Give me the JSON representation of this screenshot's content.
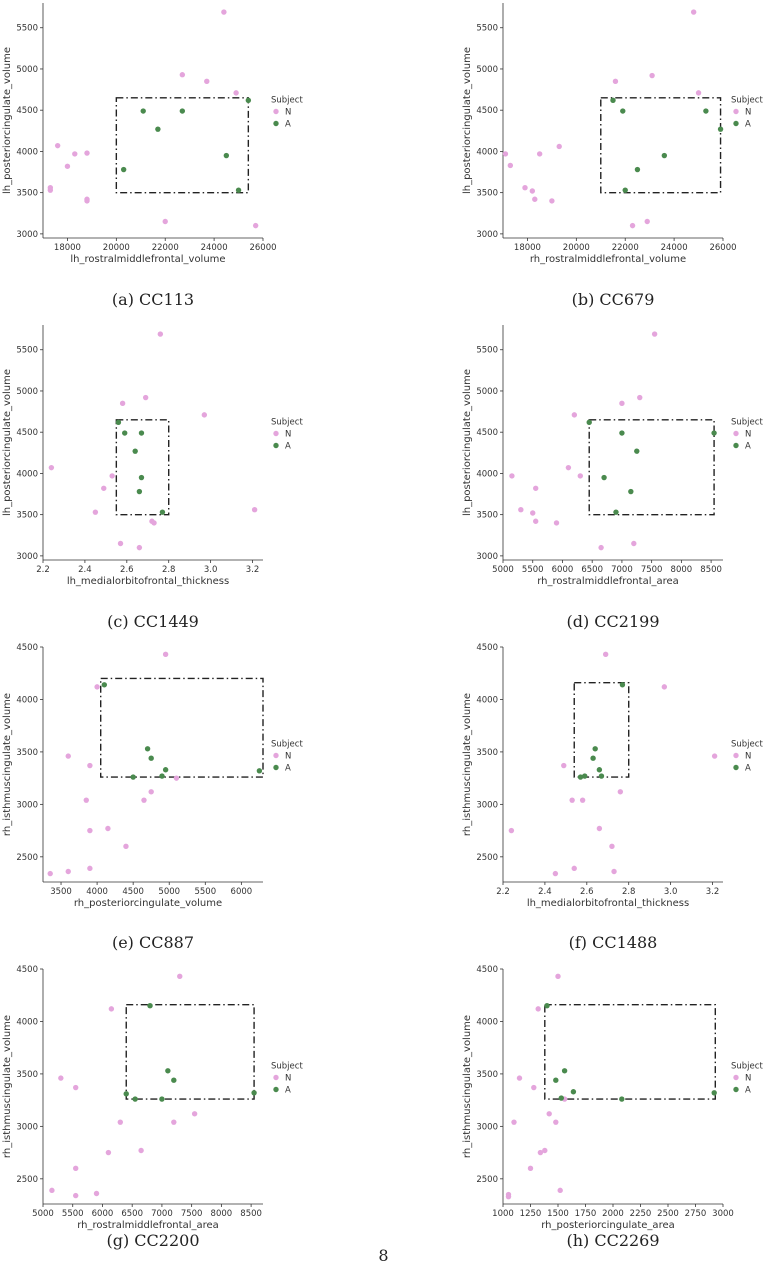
{
  "page_number": "8",
  "legend": {
    "title": "Subject",
    "labels": [
      "N",
      "A"
    ]
  },
  "colors": {
    "N": "#e4a5dc",
    "A": "#4a8a4e"
  },
  "captions": [
    "(a) CC113",
    "(b) CC679",
    "(c) CC1449",
    "(d) CC2199",
    "(e) CC887",
    "(f) CC1488",
    "(g) CC2200",
    "(h) CC2269"
  ],
  "chart_data": [
    {
      "type": "scatter",
      "caption": "(a) CC113",
      "xlabel": "lh_rostralmiddlefrontal_volume",
      "ylabel": "lh_posteriorcingulate_volume",
      "xlim": [
        17000,
        26000
      ],
      "ylim": [
        2950,
        5800
      ],
      "xticks": [
        18000,
        20000,
        22000,
        24000,
        26000
      ],
      "yticks": [
        3000,
        3500,
        4000,
        4500,
        5000,
        5500
      ],
      "box": {
        "x": [
          20000,
          25400
        ],
        "y": [
          3500,
          4650
        ]
      },
      "series": [
        {
          "name": "N",
          "points": [
            [
              17300,
              3560
            ],
            [
              17300,
              3530
            ],
            [
              17600,
              4070
            ],
            [
              18000,
              3820
            ],
            [
              18300,
              3970
            ],
            [
              18800,
              3980
            ],
            [
              18800,
              3420
            ],
            [
              18800,
              3400
            ],
            [
              22000,
              3150
            ],
            [
              22700,
              4930
            ],
            [
              23700,
              4850
            ],
            [
              24400,
              5690
            ],
            [
              24900,
              4710
            ],
            [
              25700,
              3100
            ]
          ]
        },
        {
          "name": "A",
          "points": [
            [
              20300,
              3780
            ],
            [
              21100,
              4490
            ],
            [
              21700,
              4270
            ],
            [
              22700,
              4490
            ],
            [
              24500,
              3950
            ],
            [
              25000,
              3530
            ],
            [
              25400,
              4620
            ]
          ]
        }
      ]
    },
    {
      "type": "scatter",
      "caption": "(b) CC679",
      "xlabel": "rh_rostralmiddlefrontal_volume",
      "ylabel": "lh_posteriorcingulate_volume",
      "xlim": [
        17000,
        26000
      ],
      "ylim": [
        2950,
        5800
      ],
      "xticks": [
        18000,
        20000,
        22000,
        24000,
        26000
      ],
      "yticks": [
        3000,
        3500,
        4000,
        4500,
        5000,
        5500
      ],
      "box": {
        "x": [
          21000,
          25900
        ],
        "y": [
          3500,
          4650
        ]
      },
      "series": [
        {
          "name": "N",
          "points": [
            [
              17100,
              3970
            ],
            [
              17300,
              3830
            ],
            [
              17900,
              3560
            ],
            [
              18200,
              3520
            ],
            [
              18300,
              3420
            ],
            [
              18500,
              3970
            ],
            [
              19000,
              3400
            ],
            [
              19300,
              4060
            ],
            [
              21600,
              4850
            ],
            [
              22300,
              3100
            ],
            [
              22900,
              3150
            ],
            [
              23100,
              4920
            ],
            [
              24800,
              5690
            ],
            [
              25000,
              4710
            ]
          ]
        },
        {
          "name": "A",
          "points": [
            [
              21500,
              4620
            ],
            [
              21900,
              4490
            ],
            [
              22000,
              3530
            ],
            [
              22500,
              3780
            ],
            [
              23600,
              3950
            ],
            [
              25300,
              4490
            ],
            [
              25900,
              4270
            ]
          ]
        }
      ]
    },
    {
      "type": "scatter",
      "caption": "(c) CC1449",
      "xlabel": "lh_medialorbitofrontal_thickness",
      "ylabel": "lh_posteriorcingulate_volume",
      "xlim": [
        2.2,
        3.25
      ],
      "ylim": [
        2950,
        5800
      ],
      "xticks": [
        2.2,
        2.4,
        2.6,
        2.8,
        3.0,
        3.2
      ],
      "xtick_labels": [
        "2.2",
        "2.4",
        "2.6",
        "2.8",
        "3.0",
        "3.2"
      ],
      "yticks": [
        3000,
        3500,
        4000,
        4500,
        5000,
        5500
      ],
      "box": {
        "x": [
          2.55,
          2.8
        ],
        "y": [
          3500,
          4650
        ]
      },
      "series": [
        {
          "name": "N",
          "points": [
            [
              2.24,
              4070
            ],
            [
              2.45,
              3530
            ],
            [
              2.49,
              3820
            ],
            [
              2.53,
              3970
            ],
            [
              2.57,
              3150
            ],
            [
              2.58,
              4850
            ],
            [
              2.66,
              3100
            ],
            [
              2.69,
              4920
            ],
            [
              2.72,
              3420
            ],
            [
              2.73,
              3400
            ],
            [
              2.76,
              5690
            ],
            [
              2.97,
              4710
            ],
            [
              3.21,
              3560
            ]
          ]
        },
        {
          "name": "A",
          "points": [
            [
              2.56,
              4620
            ],
            [
              2.59,
              4490
            ],
            [
              2.64,
              4270
            ],
            [
              2.67,
              4490
            ],
            [
              2.67,
              3950
            ],
            [
              2.66,
              3780
            ],
            [
              2.77,
              3530
            ]
          ]
        }
      ]
    },
    {
      "type": "scatter",
      "caption": "(d) CC2199",
      "xlabel": "rh_rostralmiddlefrontal_area",
      "ylabel": "lh_posteriorcingulate_volume",
      "xlim": [
        5000,
        8700
      ],
      "ylim": [
        2950,
        5800
      ],
      "xticks": [
        5000,
        5500,
        6000,
        6500,
        7000,
        7500,
        8000,
        8500
      ],
      "yticks": [
        3000,
        3500,
        4000,
        4500,
        5000,
        5500
      ],
      "box": {
        "x": [
          6450,
          8550
        ],
        "y": [
          3500,
          4650
        ]
      },
      "series": [
        {
          "name": "N",
          "points": [
            [
              5150,
              3970
            ],
            [
              5300,
              3560
            ],
            [
              5500,
              3520
            ],
            [
              5550,
              3420
            ],
            [
              5550,
              3820
            ],
            [
              5900,
              3400
            ],
            [
              6100,
              4070
            ],
            [
              6200,
              4710
            ],
            [
              6300,
              3970
            ],
            [
              6650,
              3100
            ],
            [
              7000,
              4850
            ],
            [
              7200,
              3150
            ],
            [
              7300,
              4920
            ],
            [
              7550,
              5690
            ]
          ]
        },
        {
          "name": "A",
          "points": [
            [
              6450,
              4620
            ],
            [
              6700,
              3950
            ],
            [
              6900,
              3530
            ],
            [
              7000,
              4490
            ],
            [
              7150,
              3780
            ],
            [
              7250,
              4270
            ],
            [
              8550,
              4490
            ]
          ]
        }
      ]
    },
    {
      "type": "scatter",
      "caption": "(e) CC887",
      "xlabel": "rh_posteriorcingulate_volume",
      "ylabel": "rh_isthmuscingulate_volume",
      "xlim": [
        3250,
        6300
      ],
      "ylim": [
        2260,
        4500
      ],
      "xticks": [
        3500,
        4000,
        4500,
        5000,
        5500,
        6000
      ],
      "yticks": [
        2500,
        3000,
        3500,
        4000,
        4500
      ],
      "box": {
        "x": [
          4050,
          6300
        ],
        "y": [
          3260,
          4200
        ]
      },
      "series": [
        {
          "name": "N",
          "points": [
            [
              3350,
              2340
            ],
            [
              3600,
              3460
            ],
            [
              3600,
              2360
            ],
            [
              3850,
              3040
            ],
            [
              3900,
              2750
            ],
            [
              3900,
              2390
            ],
            [
              3900,
              3370
            ],
            [
              4000,
              4120
            ],
            [
              4150,
              2770
            ],
            [
              4400,
              2600
            ],
            [
              4650,
              3040
            ],
            [
              4750,
              3120
            ],
            [
              4950,
              4430
            ],
            [
              5100,
              3250
            ]
          ]
        },
        {
          "name": "A",
          "points": [
            [
              4100,
              4140
            ],
            [
              4500,
              3260
            ],
            [
              4700,
              3530
            ],
            [
              4750,
              3440
            ],
            [
              4900,
              3270
            ],
            [
              4950,
              3330
            ],
            [
              6250,
              3320
            ]
          ]
        }
      ]
    },
    {
      "type": "scatter",
      "caption": "(f) CC1488",
      "xlabel": "lh_medialorbitofrontal_thickness",
      "ylabel": "rh_isthmuscingulate_volume",
      "xlim": [
        2.2,
        3.25
      ],
      "ylim": [
        2260,
        4500
      ],
      "xticks": [
        2.2,
        2.4,
        2.6,
        2.8,
        3.0,
        3.2
      ],
      "xtick_labels": [
        "2.2",
        "2.4",
        "2.6",
        "2.8",
        "3.0",
        "3.2"
      ],
      "yticks": [
        2500,
        3000,
        3500,
        4000,
        4500
      ],
      "box": {
        "x": [
          2.54,
          2.8
        ],
        "y": [
          3260,
          4160
        ]
      },
      "series": [
        {
          "name": "N",
          "points": [
            [
              2.24,
              2750
            ],
            [
              2.45,
              2340
            ],
            [
              2.49,
              3370
            ],
            [
              2.53,
              3040
            ],
            [
              2.54,
              2390
            ],
            [
              2.58,
              3040
            ],
            [
              2.66,
              2770
            ],
            [
              2.69,
              4430
            ],
            [
              2.72,
              2600
            ],
            [
              2.73,
              2360
            ],
            [
              2.76,
              3120
            ],
            [
              2.97,
              4120
            ],
            [
              3.21,
              3460
            ]
          ]
        },
        {
          "name": "A",
          "points": [
            [
              2.57,
              3260
            ],
            [
              2.59,
              3270
            ],
            [
              2.63,
              3440
            ],
            [
              2.64,
              3530
            ],
            [
              2.66,
              3330
            ],
            [
              2.67,
              3270
            ],
            [
              2.77,
              4140
            ]
          ]
        }
      ]
    },
    {
      "type": "scatter",
      "caption": "(g) CC2200",
      "xlabel": "rh_rostralmiddlefrontal_area",
      "ylabel": "rh_isthmuscingulate_volume",
      "xlim": [
        5000,
        8700
      ],
      "ylim": [
        2260,
        4500
      ],
      "xticks": [
        5000,
        5500,
        6000,
        6500,
        7000,
        7500,
        8000,
        8500
      ],
      "yticks": [
        2500,
        3000,
        3500,
        4000,
        4500
      ],
      "box": {
        "x": [
          6400,
          8550
        ],
        "y": [
          3260,
          4160
        ]
      },
      "series": [
        {
          "name": "N",
          "points": [
            [
              5150,
              2390
            ],
            [
              5300,
              3460
            ],
            [
              5550,
              3370
            ],
            [
              5550,
              2600
            ],
            [
              5550,
              2340
            ],
            [
              5900,
              2360
            ],
            [
              6100,
              2750
            ],
            [
              6150,
              4120
            ],
            [
              6300,
              3040
            ],
            [
              6650,
              2770
            ],
            [
              7200,
              3040
            ],
            [
              7300,
              4430
            ],
            [
              7550,
              3120
            ]
          ]
        },
        {
          "name": "A",
          "points": [
            [
              6400,
              3310
            ],
            [
              6550,
              3260
            ],
            [
              6800,
              4150
            ],
            [
              7000,
              3260
            ],
            [
              7100,
              3530
            ],
            [
              7200,
              3440
            ],
            [
              8550,
              3320
            ]
          ]
        }
      ]
    },
    {
      "type": "scatter",
      "caption": "(h) CC2269",
      "xlabel": "rh_posteriorcingulate_area",
      "ylabel": "rh_isthmuscingulate_volume",
      "xlim": [
        1000,
        3000
      ],
      "ylim": [
        2260,
        4500
      ],
      "xticks": [
        1000,
        1250,
        1500,
        1750,
        2000,
        2250,
        2500,
        2750,
        3000
      ],
      "yticks": [
        2500,
        3000,
        3500,
        4000,
        4500
      ],
      "box": {
        "x": [
          1380,
          2930
        ],
        "y": [
          3260,
          4160
        ]
      },
      "series": [
        {
          "name": "N",
          "points": [
            [
              1050,
              2350
            ],
            [
              1050,
              2330
            ],
            [
              1100,
              3040
            ],
            [
              1150,
              3460
            ],
            [
              1250,
              2600
            ],
            [
              1280,
              3370
            ],
            [
              1320,
              4120
            ],
            [
              1340,
              2750
            ],
            [
              1380,
              2770
            ],
            [
              1420,
              3120
            ],
            [
              1480,
              3040
            ],
            [
              1500,
              4430
            ],
            [
              1520,
              2390
            ],
            [
              1560,
              3260
            ]
          ]
        },
        {
          "name": "A",
          "points": [
            [
              1400,
              4150
            ],
            [
              1480,
              3440
            ],
            [
              1530,
              3270
            ],
            [
              1560,
              3530
            ],
            [
              1640,
              3330
            ],
            [
              2080,
              3260
            ],
            [
              2920,
              3320
            ]
          ]
        }
      ]
    }
  ]
}
